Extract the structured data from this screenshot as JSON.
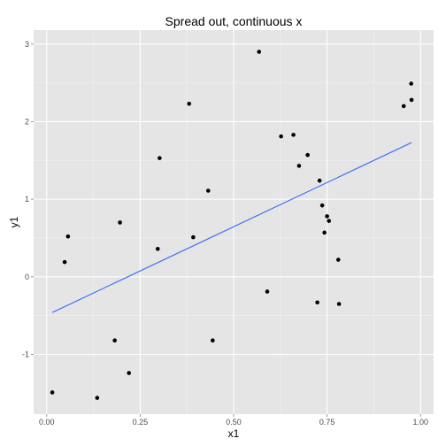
{
  "chart_data": {
    "type": "scatter",
    "title": "Spread out, continuous x",
    "xlabel": "x1",
    "ylabel": "y1",
    "xlim": [
      -0.035,
      1.035
    ],
    "ylim": [
      -1.77,
      3.18
    ],
    "x_ticks": [
      0.0,
      0.25,
      0.5,
      0.75,
      1.0
    ],
    "x_tick_labels": [
      "0.00",
      "0.25",
      "0.50",
      "0.75",
      "1.00"
    ],
    "y_ticks": [
      -1,
      0,
      1,
      2,
      3
    ],
    "y_tick_labels": [
      "-1",
      "0",
      "1",
      "2",
      "3"
    ],
    "grid": true,
    "background": "#e5e5e5",
    "grid_color": "#ffffff",
    "point_color": "#000000",
    "line_color": "#3366ff",
    "points": [
      {
        "x": 0.015,
        "y": -1.49
      },
      {
        "x": 0.048,
        "y": 0.19
      },
      {
        "x": 0.057,
        "y": 0.52
      },
      {
        "x": 0.135,
        "y": -1.56
      },
      {
        "x": 0.182,
        "y": -0.82
      },
      {
        "x": 0.196,
        "y": 0.7
      },
      {
        "x": 0.22,
        "y": -1.24
      },
      {
        "x": 0.297,
        "y": 0.36
      },
      {
        "x": 0.302,
        "y": 1.53
      },
      {
        "x": 0.381,
        "y": 2.23
      },
      {
        "x": 0.392,
        "y": 0.51
      },
      {
        "x": 0.432,
        "y": 1.11
      },
      {
        "x": 0.444,
        "y": -0.82
      },
      {
        "x": 0.568,
        "y": 2.9
      },
      {
        "x": 0.59,
        "y": -0.19
      },
      {
        "x": 0.627,
        "y": 1.81
      },
      {
        "x": 0.66,
        "y": 1.83
      },
      {
        "x": 0.675,
        "y": 1.43
      },
      {
        "x": 0.698,
        "y": 1.57
      },
      {
        "x": 0.724,
        "y": -0.33
      },
      {
        "x": 0.73,
        "y": 1.24
      },
      {
        "x": 0.737,
        "y": 0.92
      },
      {
        "x": 0.743,
        "y": 0.57
      },
      {
        "x": 0.75,
        "y": 0.78
      },
      {
        "x": 0.755,
        "y": 0.72
      },
      {
        "x": 0.78,
        "y": 0.22
      },
      {
        "x": 0.782,
        "y": -0.35
      },
      {
        "x": 0.955,
        "y": 2.2
      },
      {
        "x": 0.975,
        "y": 2.49
      },
      {
        "x": 0.976,
        "y": 2.28
      }
    ],
    "fit_line": {
      "x": [
        0.015,
        0.976
      ],
      "y": [
        -0.46,
        1.73
      ]
    }
  }
}
